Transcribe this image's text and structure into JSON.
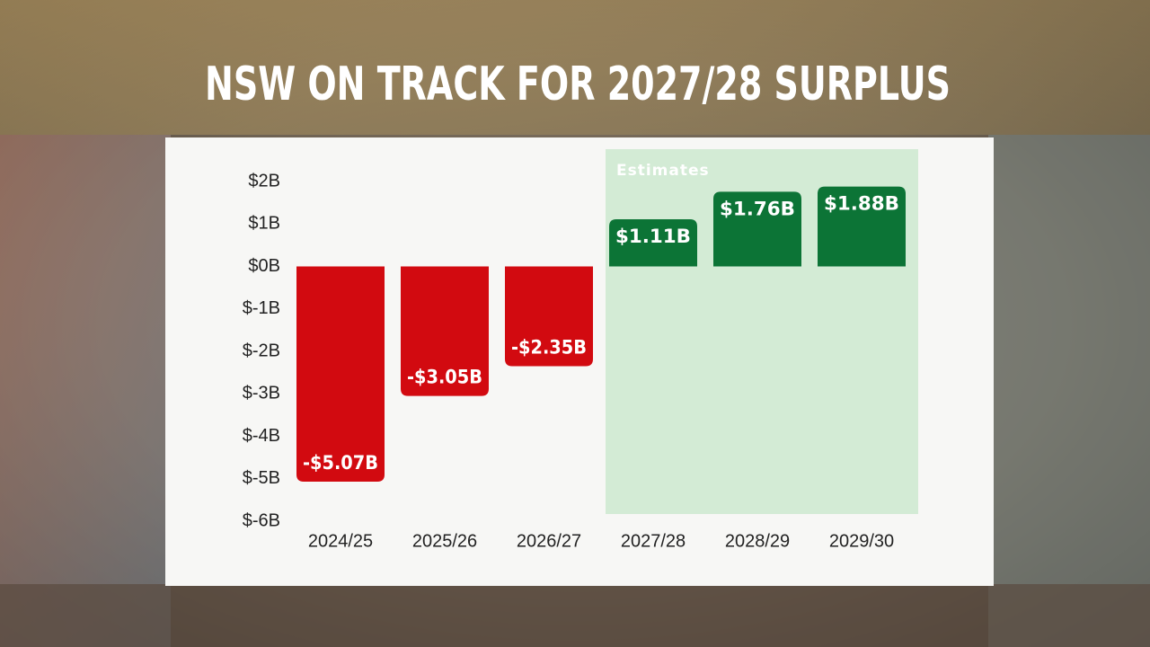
{
  "chart_data": {
    "type": "bar",
    "title": "NSW ON TRACK FOR 2027/28 SURPLUS",
    "categories": [
      "2024/25",
      "2025/26",
      "2026/27",
      "2027/28",
      "2028/29",
      "2029/30"
    ],
    "values": [
      -5.07,
      -3.05,
      -2.35,
      1.11,
      1.76,
      1.88
    ],
    "value_labels": [
      "-$5.07B",
      "-$3.05B",
      "-$2.35B",
      "$1.11B",
      "$1.76B",
      "$1.88B"
    ],
    "negative_color": "#d20a10",
    "positive_color": "#0c7436",
    "ylim": [
      -6,
      2
    ],
    "yticks": [
      {
        "value": 2,
        "label": "$2B"
      },
      {
        "value": 1,
        "label": "$1B"
      },
      {
        "value": 0,
        "label": "$0B"
      },
      {
        "value": -1,
        "label": "$-1B"
      },
      {
        "value": -2,
        "label": "$-2B"
      },
      {
        "value": -3,
        "label": "$-3B"
      },
      {
        "value": -4,
        "label": "$-4B"
      },
      {
        "value": -5,
        "label": "$-5B"
      },
      {
        "value": -6,
        "label": "$-6B"
      }
    ],
    "grid": false,
    "annotations": [
      {
        "text": "Estimates",
        "start": "2027/28",
        "end": "2029/30",
        "color": "#d3ebd5"
      }
    ]
  }
}
